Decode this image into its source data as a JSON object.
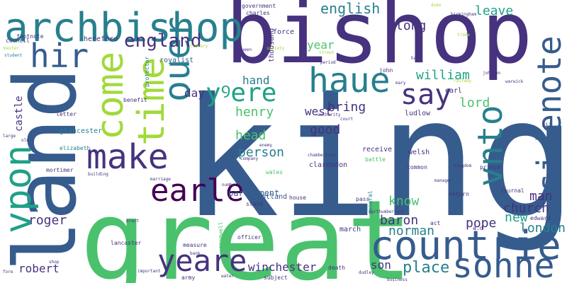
{
  "palette": {
    "dark_purple": "#440154",
    "indigo": "#46327e",
    "blue": "#365c8d",
    "teal": "#277f8e",
    "sea": "#1fa187",
    "green": "#4ac16d",
    "lime": "#a0da39",
    "yellow": "#cde11d"
  },
  "words": [
    "king",
    "great",
    "bishop",
    "land",
    "archbishop",
    "countrie",
    "sonne",
    "yeare",
    "earle",
    "make",
    "come",
    "time",
    "vpon",
    "sidenote",
    "vnto",
    "ouer",
    "haue",
    "say",
    "hir",
    "england",
    "yꝰere",
    "robert",
    "winchester",
    "place",
    "son",
    "norman",
    "baron",
    "know",
    "church",
    "pope",
    "new",
    "london",
    "man",
    "roger",
    "person",
    "head",
    "good",
    "henry",
    "bring",
    "west",
    "hand",
    "william",
    "lord",
    "english",
    "long",
    "leave",
    "year",
    "day",
    "castle",
    "gloucester",
    "parliament",
    "scotland",
    "march",
    "clarendon",
    "welsh",
    "receive",
    "ludlow",
    "john",
    "thousand",
    "royalist",
    "hereford",
    "council",
    "footnote",
    "government",
    "charles",
    "force",
    "earl",
    "queen",
    "protector",
    "letter",
    "benefit",
    "elizabeth",
    "mortimer",
    "lancaster",
    "measure",
    "army",
    "officer",
    "cromwell",
    "house",
    "state",
    "general",
    "pass",
    "return",
    "journal",
    "edward",
    "prince",
    "common",
    "battle",
    "wales",
    "subject",
    "death",
    "dudley",
    "act",
    "a.d",
    "northumberland",
    "iii",
    "business",
    "chamberlain",
    "kingdom",
    "manager",
    "building",
    "marriage",
    "number",
    "company",
    "enemy",
    "authority",
    "shop",
    "important",
    "water",
    "bank",
    "trade",
    "birmingham",
    "duke",
    "street",
    "period",
    "mary",
    "warwick",
    "johnson",
    "railway",
    "half",
    "fore",
    "erect",
    "large",
    "old",
    "master",
    "student",
    "library",
    "society",
    "court"
  ]
}
